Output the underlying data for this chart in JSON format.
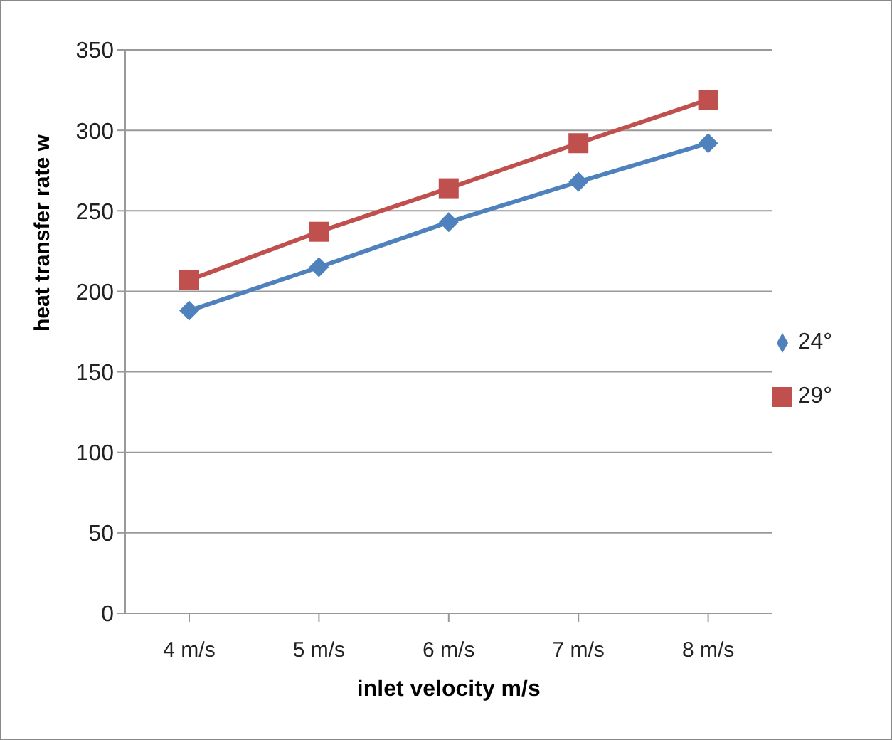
{
  "chart_data": {
    "type": "line",
    "xlabel": "inlet velocity m/s",
    "ylabel": "heat transfer rate w",
    "categories": [
      "4 m/s",
      "5 m/s",
      "6 m/s",
      "7 m/s",
      "8 m/s"
    ],
    "series": [
      {
        "name": "24°",
        "color": "#4f81bd",
        "marker": "diamond",
        "values": [
          188,
          215,
          243,
          268,
          292
        ]
      },
      {
        "name": "29°",
        "color": "#c0504d",
        "marker": "square",
        "values": [
          207,
          237,
          264,
          292,
          319
        ]
      }
    ],
    "ylim": [
      0,
      350
    ],
    "yticks": [
      0,
      50,
      100,
      150,
      200,
      250,
      300,
      350
    ],
    "grid": "y",
    "legend": "right",
    "line_style": "solid"
  }
}
